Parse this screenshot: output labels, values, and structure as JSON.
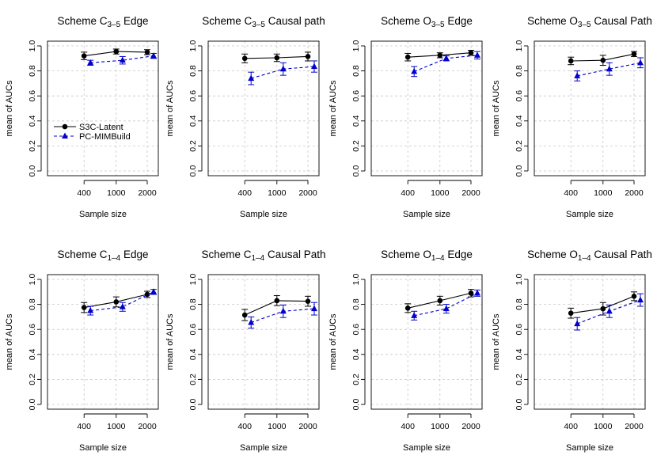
{
  "chart_data": [
    {
      "type": "line",
      "title": "Scheme C",
      "title_sub": "3–5",
      "title_rest": " Edge",
      "xlabel": "Sample size",
      "ylabel": "mean of AUCs",
      "categories": [
        "400",
        "1000",
        "2000"
      ],
      "yticks": [
        "0.0",
        "0.2",
        "0.4",
        "0.6",
        "0.8",
        "1.0"
      ],
      "ylim": [
        0,
        1
      ],
      "grid": true,
      "legend": {
        "placement": "left-middle",
        "entries": [
          "S3C-Latent",
          "PC-MIMBuild"
        ]
      },
      "series": [
        {
          "name": "S3C-Latent",
          "values": [
            0.92,
            0.955,
            0.95
          ],
          "err": [
            0.03,
            0.02,
            0.02
          ]
        },
        {
          "name": "PC-MIMBuild",
          "values": [
            0.865,
            0.885,
            0.92
          ],
          "err": [
            0.02,
            0.03,
            0.02
          ]
        }
      ]
    },
    {
      "type": "line",
      "title": "Scheme C",
      "title_sub": "3–5",
      "title_rest": " Causal path",
      "xlabel": "Sample size",
      "ylabel": "mean of AUCs",
      "categories": [
        "400",
        "1000",
        "2000"
      ],
      "yticks": [
        "0.0",
        "0.2",
        "0.4",
        "0.6",
        "0.8",
        "1.0"
      ],
      "ylim": [
        0,
        1
      ],
      "grid": true,
      "series": [
        {
          "name": "S3C-Latent",
          "values": [
            0.9,
            0.905,
            0.915
          ],
          "err": [
            0.035,
            0.03,
            0.035
          ]
        },
        {
          "name": "PC-MIMBuild",
          "values": [
            0.74,
            0.815,
            0.835
          ],
          "err": [
            0.05,
            0.05,
            0.045
          ]
        }
      ]
    },
    {
      "type": "line",
      "title": "Scheme O",
      "title_sub": "3–5",
      "title_rest": " Edge",
      "xlabel": "Sample size",
      "ylabel": "mean of AUCs",
      "categories": [
        "400",
        "1000",
        "2000"
      ],
      "yticks": [
        "0.0",
        "0.2",
        "0.4",
        "0.6",
        "0.8",
        "1.0"
      ],
      "ylim": [
        0,
        1
      ],
      "grid": true,
      "series": [
        {
          "name": "S3C-Latent",
          "values": [
            0.91,
            0.925,
            0.945
          ],
          "err": [
            0.03,
            0.02,
            0.02
          ]
        },
        {
          "name": "PC-MIMBuild",
          "values": [
            0.795,
            0.9,
            0.925
          ],
          "err": [
            0.04,
            0.02,
            0.03
          ]
        }
      ]
    },
    {
      "type": "line",
      "title": "Scheme O",
      "title_sub": "3–5",
      "title_rest": " Causal Path",
      "xlabel": "Sample size",
      "ylabel": "mean of AUCs",
      "categories": [
        "400",
        "1000",
        "2000"
      ],
      "yticks": [
        "0.0",
        "0.2",
        "0.4",
        "0.6",
        "0.8",
        "1.0"
      ],
      "ylim": [
        0,
        1
      ],
      "grid": true,
      "series": [
        {
          "name": "S3C-Latent",
          "values": [
            0.88,
            0.885,
            0.935
          ],
          "err": [
            0.03,
            0.04,
            0.02
          ]
        },
        {
          "name": "PC-MIMBuild",
          "values": [
            0.76,
            0.815,
            0.865
          ],
          "err": [
            0.04,
            0.05,
            0.04
          ]
        }
      ]
    },
    {
      "type": "line",
      "title": "Scheme C",
      "title_sub": "1–4",
      "title_rest": " Edge",
      "xlabel": "Sample size",
      "ylabel": "mean of AUCs",
      "categories": [
        "400",
        "1000",
        "2000"
      ],
      "yticks": [
        "0.0",
        "0.2",
        "0.4",
        "0.6",
        "0.8",
        "1.0"
      ],
      "ylim": [
        0,
        1
      ],
      "grid": true,
      "series": [
        {
          "name": "S3C-Latent",
          "values": [
            0.775,
            0.82,
            0.88
          ],
          "err": [
            0.04,
            0.04,
            0.025
          ]
        },
        {
          "name": "PC-MIMBuild",
          "values": [
            0.75,
            0.78,
            0.9
          ],
          "err": [
            0.035,
            0.035,
            0.02
          ]
        }
      ]
    },
    {
      "type": "line",
      "title": "Scheme C",
      "title_sub": "1–4",
      "title_rest": " Causal Path",
      "xlabel": "Sample size",
      "ylabel": "mean of AUCs",
      "categories": [
        "400",
        "1000",
        "2000"
      ],
      "yticks": [
        "0.0",
        "0.2",
        "0.4",
        "0.6",
        "0.8",
        "1.0"
      ],
      "ylim": [
        0,
        1
      ],
      "grid": true,
      "series": [
        {
          "name": "S3C-Latent",
          "values": [
            0.715,
            0.83,
            0.825
          ],
          "err": [
            0.045,
            0.04,
            0.04
          ]
        },
        {
          "name": "PC-MIMBuild",
          "values": [
            0.655,
            0.745,
            0.765
          ],
          "err": [
            0.045,
            0.05,
            0.05
          ]
        }
      ]
    },
    {
      "type": "line",
      "title": "Scheme O",
      "title_sub": "1–4",
      "title_rest": " Edge",
      "xlabel": "Sample size",
      "ylabel": "mean of AUCs",
      "categories": [
        "400",
        "1000",
        "2000"
      ],
      "yticks": [
        "0.0",
        "0.2",
        "0.4",
        "0.6",
        "0.8",
        "1.0"
      ],
      "ylim": [
        0,
        1
      ],
      "grid": true,
      "series": [
        {
          "name": "S3C-Latent",
          "values": [
            0.77,
            0.83,
            0.89
          ],
          "err": [
            0.035,
            0.035,
            0.03
          ]
        },
        {
          "name": "PC-MIMBuild",
          "values": [
            0.71,
            0.765,
            0.89
          ],
          "err": [
            0.035,
            0.035,
            0.025
          ]
        }
      ]
    },
    {
      "type": "line",
      "title": "Scheme O",
      "title_sub": "1–4",
      "title_rest": " Causal Path",
      "xlabel": "Sample size",
      "ylabel": "mean of AUCs",
      "categories": [
        "400",
        "1000",
        "2000"
      ],
      "yticks": [
        "0.0",
        "0.2",
        "0.4",
        "0.6",
        "0.8",
        "1.0"
      ],
      "ylim": [
        0,
        1
      ],
      "grid": true,
      "series": [
        {
          "name": "S3C-Latent",
          "values": [
            0.73,
            0.765,
            0.865
          ],
          "err": [
            0.04,
            0.05,
            0.035
          ]
        },
        {
          "name": "PC-MIMBuild",
          "values": [
            0.645,
            0.745,
            0.835
          ],
          "err": [
            0.05,
            0.05,
            0.05
          ]
        }
      ]
    }
  ],
  "colors": {
    "s3c": "#000000",
    "pc": "#0000cc",
    "grid": "#c8c8c8"
  },
  "markers": {
    "s3c": "filled-circle",
    "pc": "filled-triangle"
  }
}
